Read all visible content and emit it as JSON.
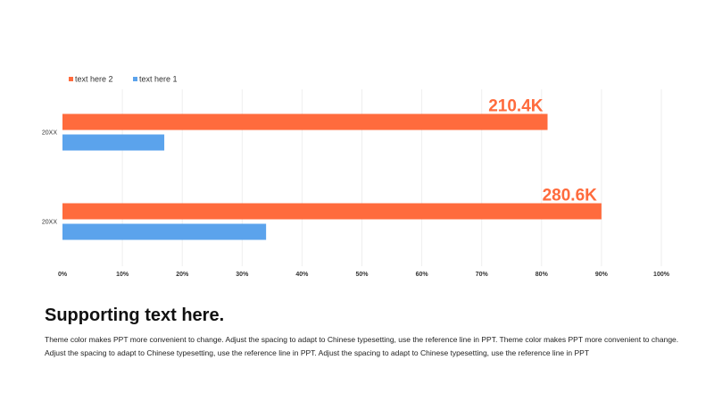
{
  "chart_data": {
    "type": "bar",
    "orientation": "horizontal",
    "categories": [
      "20XX",
      "20XX"
    ],
    "series": [
      {
        "name": "text here 2",
        "color": "#FF6B3D",
        "values": [
          81,
          90
        ],
        "data_labels": [
          "210.4K",
          "280.6K"
        ]
      },
      {
        "name": "text here 1",
        "color": "#5BA3EC",
        "values": [
          17,
          34
        ]
      }
    ],
    "xlim": [
      0,
      100
    ],
    "x_ticks": [
      0,
      10,
      20,
      30,
      40,
      50,
      60,
      70,
      80,
      90,
      100
    ],
    "x_tick_labels": [
      "0%",
      "10%",
      "20%",
      "30%",
      "40%",
      "50%",
      "60%",
      "70%",
      "80%",
      "90%",
      "100%"
    ],
    "grid": true,
    "legend": "top-left"
  },
  "text": {
    "heading": "Supporting text here.",
    "body": "Theme color makes PPT more convenient to change. Adjust the spacing to adapt to Chinese  typesetting, use the reference line in PPT. Theme color makes PPT more convenient to change. Adjust the spacing to adapt to Chinese typesetting, use the reference line in PPT. Adjust the spacing to adapt to Chinese typesetting, use the reference line in PPT"
  }
}
